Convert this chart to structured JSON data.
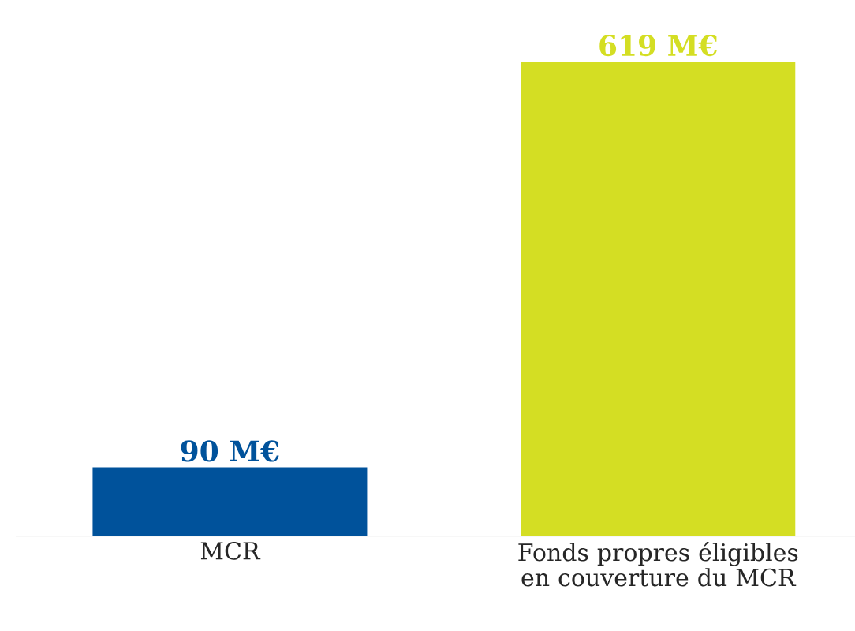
{
  "chart_data": {
    "type": "bar",
    "categories": [
      "MCR",
      "Fonds propres éligibles en couverture du MCR"
    ],
    "values": [
      90,
      619
    ],
    "colors": [
      "#00529b",
      "#d4de23"
    ],
    "value_labels": [
      "90 M€",
      "619 M€"
    ],
    "tick_labels": "x"
  }
}
